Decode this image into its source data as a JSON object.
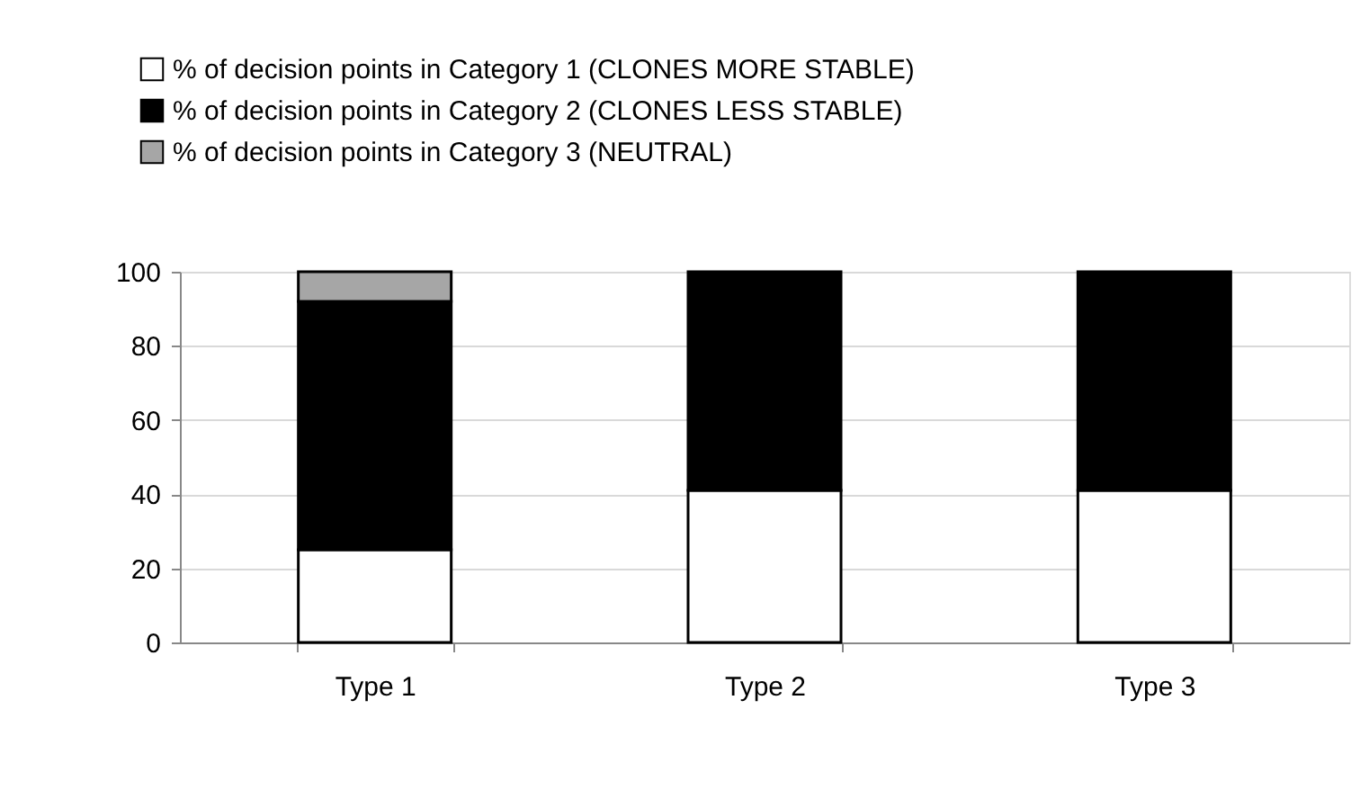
{
  "chart_data": {
    "type": "bar",
    "stacked": true,
    "categories": [
      "Type 1",
      "Type 2",
      "Type 3"
    ],
    "series": [
      {
        "name": "% of decision points in Category 1 (CLONES MORE STABLE)",
        "color": "#ffffff",
        "values": [
          25,
          41,
          41
        ]
      },
      {
        "name": "% of decision points in Category 2 (CLONES LESS STABLE)",
        "color": "#000000",
        "values": [
          67,
          59,
          59
        ]
      },
      {
        "name": "% of decision points in Category 3 (NEUTRAL)",
        "color": "#a6a6a6",
        "values": [
          8,
          0,
          0
        ]
      }
    ],
    "ylim": [
      0,
      100
    ],
    "yticks": [
      0,
      20,
      40,
      60,
      80,
      100
    ],
    "grid": "y",
    "legend": "top left"
  }
}
